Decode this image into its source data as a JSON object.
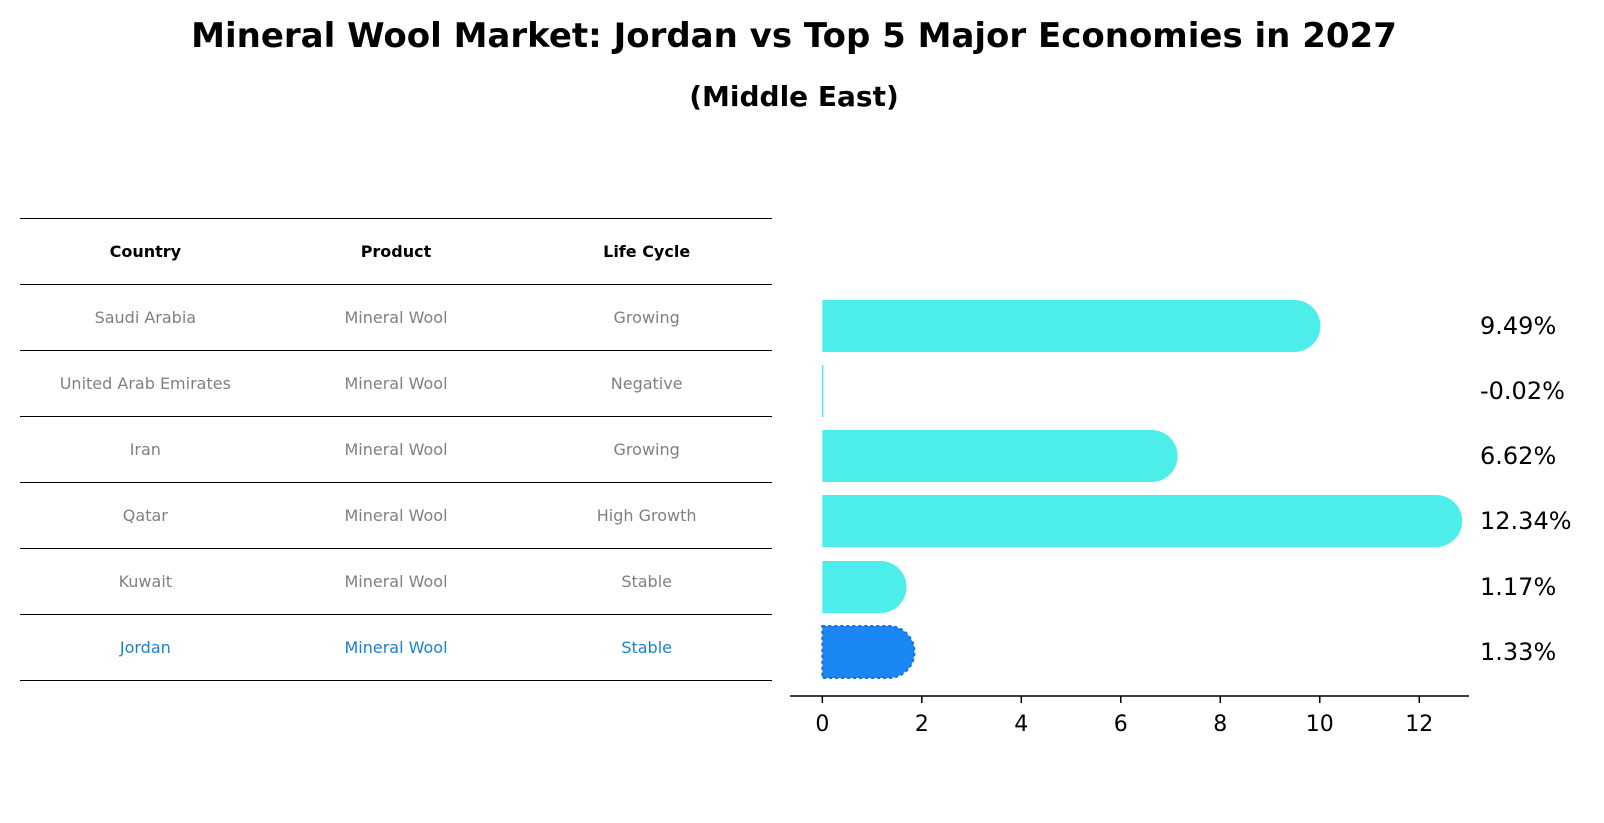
{
  "chart_data": {
    "type": "bar",
    "orientation": "horizontal",
    "title": "Mineral Wool Market: Jordan vs Top 5 Major Economies in 2027",
    "subtitle": "(Middle East)",
    "table": {
      "headers": [
        "Country",
        "Product",
        "Life Cycle"
      ],
      "rows": [
        [
          "Saudi Arabia",
          "Mineral Wool",
          "Growing"
        ],
        [
          "United Arab Emirates",
          "Mineral Wool",
          "Negative"
        ],
        [
          "Iran",
          "Mineral Wool",
          "Growing"
        ],
        [
          "Qatar",
          "Mineral Wool",
          "High Growth"
        ],
        [
          "Kuwait",
          "Mineral Wool",
          "Stable"
        ],
        [
          "Jordan",
          "Mineral Wool",
          "Stable"
        ]
      ],
      "highlight_row": 5
    },
    "categories": [
      "Saudi Arabia",
      "United Arab Emirates",
      "Iran",
      "Qatar",
      "Kuwait",
      "Jordan"
    ],
    "values": [
      9.49,
      -0.02,
      6.62,
      12.34,
      1.17,
      1.33
    ],
    "value_labels": [
      "9.49%",
      "-0.02%",
      "6.62%",
      "12.34%",
      "1.17%",
      "1.33%"
    ],
    "xlim": [
      -0.65,
      13
    ],
    "xticks": [
      0,
      2,
      4,
      6,
      8,
      10,
      12
    ],
    "xtick_labels": [
      "0",
      "2",
      "4",
      "6",
      "8",
      "10",
      "12"
    ],
    "grid": false,
    "colors": {
      "bar": "#4deeea",
      "highlight_bar": "#1a87f5",
      "highlight_text": "#1a82d6",
      "table_text": "#808080"
    }
  }
}
